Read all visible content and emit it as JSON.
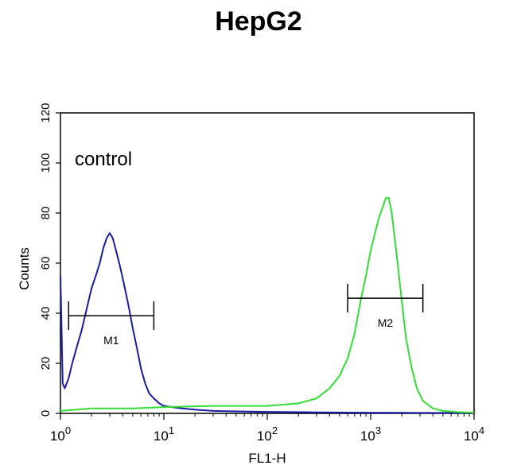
{
  "chart_data": {
    "type": "line",
    "title": "HepG2",
    "xlabel": "FL1-H",
    "ylabel": "Counts",
    "x_scale": "log",
    "xlim": [
      1,
      10000
    ],
    "ylim": [
      0,
      120
    ],
    "x_ticks": [
      {
        "value": 1,
        "base": "10",
        "exp": "0"
      },
      {
        "value": 10,
        "base": "10",
        "exp": "1"
      },
      {
        "value": 100,
        "base": "10",
        "exp": "2"
      },
      {
        "value": 1000,
        "base": "10",
        "exp": "3"
      },
      {
        "value": 10000,
        "base": "10",
        "exp": "4"
      }
    ],
    "y_ticks": [
      "0",
      "20",
      "40",
      "60",
      "80",
      "100",
      "120"
    ],
    "grid": false,
    "annotation": "control",
    "series": [
      {
        "color": "#1a1aa8",
        "x": [
          1.0,
          1.05,
          1.1,
          1.2,
          1.3,
          1.45,
          1.6,
          1.8,
          2.0,
          2.2,
          2.4,
          2.6,
          2.8,
          3.0,
          3.2,
          3.5,
          3.8,
          4.2,
          4.6,
          5.0,
          5.5,
          6.0,
          6.6,
          7.2,
          8.0,
          9.0,
          10,
          12,
          15,
          20,
          30,
          50,
          100,
          300,
          1000,
          3000,
          10000
        ],
        "y": [
          55,
          12,
          10,
          14,
          20,
          27,
          33,
          42,
          50,
          55,
          60,
          66,
          70,
          72,
          70,
          64,
          58,
          50,
          42,
          34,
          26,
          18,
          12,
          8,
          6,
          4,
          3,
          2.5,
          2,
          1.5,
          1,
          0.8,
          0.6,
          0.4,
          0.3,
          0.2,
          0.2
        ]
      },
      {
        "color": "#33dd33",
        "x": [
          1.0,
          2,
          5,
          10,
          30,
          100,
          200,
          300,
          400,
          500,
          600,
          700,
          800,
          900,
          1000,
          1100,
          1200,
          1300,
          1400,
          1500,
          1600,
          1800,
          2000,
          2200,
          2500,
          2800,
          3200,
          4000,
          5000,
          7000,
          10000
        ],
        "y": [
          1,
          2,
          2,
          2.5,
          3,
          3,
          4,
          6,
          10,
          15,
          22,
          32,
          45,
          55,
          65,
          72,
          78,
          82,
          86,
          86,
          80,
          62,
          45,
          30,
          18,
          10,
          5,
          2,
          1,
          0.5,
          0.3
        ]
      }
    ],
    "markers": [
      {
        "label": "M1",
        "x_start": 1.2,
        "x_end": 8,
        "y": 39
      },
      {
        "label": "M2",
        "x_start": 600,
        "x_end": 3200,
        "y": 46
      }
    ]
  }
}
